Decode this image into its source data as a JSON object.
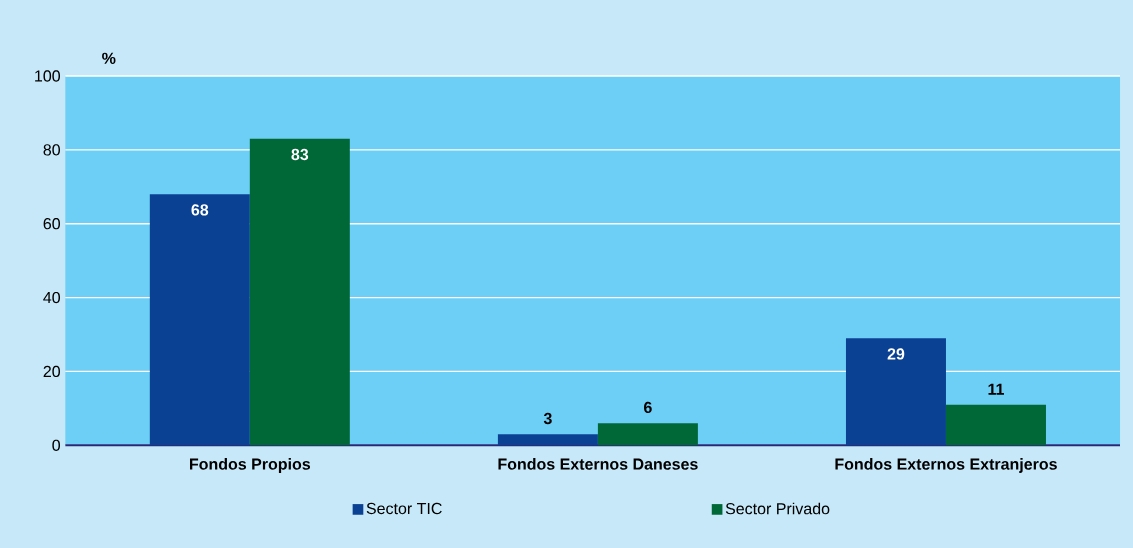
{
  "chart_data": {
    "type": "bar",
    "ylabel": "%",
    "categories": [
      "Fondos Propios",
      "Fondos Externos Daneses",
      "Fondos Externos Extranjeros"
    ],
    "series": [
      {
        "name": "Sector TIC",
        "color": "#0b4193",
        "values": [
          68,
          3,
          29
        ]
      },
      {
        "name": "Sector Privado",
        "color": "#006837",
        "values": [
          83,
          6,
          11
        ]
      }
    ],
    "ylim": [
      0,
      100
    ],
    "yticks": [
      0,
      20,
      40,
      60,
      80,
      100
    ],
    "grid": "y",
    "legend": "bottom",
    "data_labels": true
  }
}
